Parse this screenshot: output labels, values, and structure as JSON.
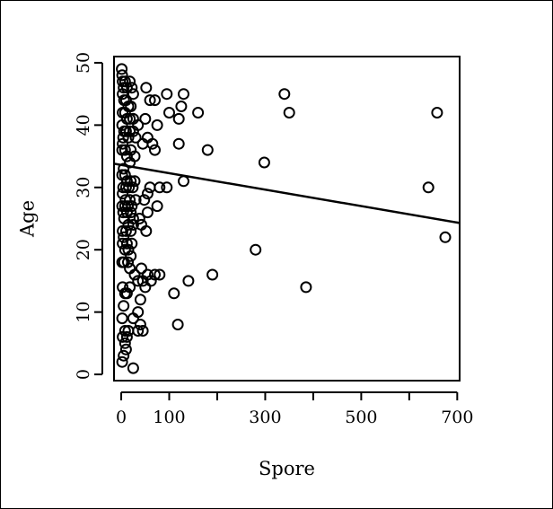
{
  "chart_data": {
    "type": "scatter",
    "title": "",
    "xlabel": "Spore",
    "ylabel": "Age",
    "xlim": [
      -15,
      705
    ],
    "ylim": [
      -1,
      51
    ],
    "x_ticks": [
      0,
      100,
      300,
      500,
      700
    ],
    "x_tick_labels": [
      "0",
      "100",
      "300",
      "500",
      "700"
    ],
    "x_minor_ticks": [
      200,
      400,
      600
    ],
    "y_ticks": [
      0,
      10,
      20,
      30,
      40,
      50
    ],
    "y_tick_labels": [
      "0",
      "10",
      "20",
      "30",
      "40",
      "50"
    ],
    "grid": false,
    "marker": "open-circle",
    "color": "#000000",
    "regression_line": {
      "x": [
        -15,
        705
      ],
      "y": [
        33.8,
        24.3
      ]
    },
    "points": [
      [
        1,
        49
      ],
      [
        2,
        48
      ],
      [
        3,
        47
      ],
      [
        5,
        46
      ],
      [
        8,
        47
      ],
      [
        12,
        46
      ],
      [
        18,
        47
      ],
      [
        22,
        46
      ],
      [
        25,
        45
      ],
      [
        3,
        45
      ],
      [
        6,
        44
      ],
      [
        10,
        44
      ],
      [
        15,
        43
      ],
      [
        20,
        43
      ],
      [
        3,
        42
      ],
      [
        8,
        42
      ],
      [
        12,
        41
      ],
      [
        18,
        41
      ],
      [
        25,
        41
      ],
      [
        35,
        40
      ],
      [
        2,
        40
      ],
      [
        6,
        39
      ],
      [
        10,
        39
      ],
      [
        18,
        39
      ],
      [
        25,
        39
      ],
      [
        4,
        38
      ],
      [
        15,
        38
      ],
      [
        30,
        38
      ],
      [
        3,
        37
      ],
      [
        8,
        36
      ],
      [
        20,
        36
      ],
      [
        45,
        37
      ],
      [
        2,
        36
      ],
      [
        12,
        35
      ],
      [
        28,
        35
      ],
      [
        18,
        34
      ],
      [
        5,
        33
      ],
      [
        2,
        32
      ],
      [
        8,
        32
      ],
      [
        12,
        31
      ],
      [
        20,
        31
      ],
      [
        28,
        31
      ],
      [
        4,
        30
      ],
      [
        10,
        30
      ],
      [
        16,
        30
      ],
      [
        24,
        30
      ],
      [
        3,
        29
      ],
      [
        9,
        28
      ],
      [
        18,
        28
      ],
      [
        30,
        28
      ],
      [
        2,
        27
      ],
      [
        8,
        27
      ],
      [
        14,
        27
      ],
      [
        22,
        27
      ],
      [
        4,
        26
      ],
      [
        12,
        26
      ],
      [
        20,
        26
      ],
      [
        25,
        25
      ],
      [
        6,
        25
      ],
      [
        15,
        24
      ],
      [
        25,
        24
      ],
      [
        3,
        23
      ],
      [
        10,
        23
      ],
      [
        20,
        23
      ],
      [
        5,
        22
      ],
      [
        12,
        21
      ],
      [
        22,
        21
      ],
      [
        3,
        21
      ],
      [
        8,
        20
      ],
      [
        15,
        20
      ],
      [
        20,
        19
      ],
      [
        2,
        18
      ],
      [
        6,
        18
      ],
      [
        14,
        18
      ],
      [
        18,
        17
      ],
      [
        28,
        16
      ],
      [
        35,
        15
      ],
      [
        45,
        15
      ],
      [
        3,
        14
      ],
      [
        8,
        13
      ],
      [
        12,
        13
      ],
      [
        18,
        14
      ],
      [
        40,
        12
      ],
      [
        5,
        11
      ],
      [
        35,
        10
      ],
      [
        2,
        9
      ],
      [
        25,
        9
      ],
      [
        40,
        8
      ],
      [
        8,
        7
      ],
      [
        35,
        7
      ],
      [
        45,
        7
      ],
      [
        15,
        7
      ],
      [
        3,
        6
      ],
      [
        12,
        6
      ],
      [
        8,
        5
      ],
      [
        10,
        4
      ],
      [
        5,
        3
      ],
      [
        2,
        2
      ],
      [
        25,
        1
      ],
      [
        42,
        17
      ],
      [
        55,
        16
      ],
      [
        62,
        15
      ],
      [
        70,
        16
      ],
      [
        80,
        16
      ],
      [
        50,
        14
      ],
      [
        52,
        23
      ],
      [
        55,
        26
      ],
      [
        60,
        30
      ],
      [
        75,
        27
      ],
      [
        80,
        30
      ],
      [
        95,
        30
      ],
      [
        48,
        28
      ],
      [
        55,
        29
      ],
      [
        38,
        25
      ],
      [
        42,
        24
      ],
      [
        52,
        46
      ],
      [
        70,
        44
      ],
      [
        95,
        45
      ],
      [
        130,
        45
      ],
      [
        60,
        44
      ],
      [
        100,
        42
      ],
      [
        120,
        41
      ],
      [
        125,
        43
      ],
      [
        160,
        42
      ],
      [
        50,
        41
      ],
      [
        55,
        38
      ],
      [
        65,
        37
      ],
      [
        70,
        36
      ],
      [
        75,
        40
      ],
      [
        120,
        37
      ],
      [
        180,
        36
      ],
      [
        130,
        31
      ],
      [
        110,
        13
      ],
      [
        118,
        8
      ],
      [
        140,
        15
      ],
      [
        190,
        16
      ],
      [
        280,
        20
      ],
      [
        298,
        34
      ],
      [
        340,
        45
      ],
      [
        350,
        42
      ],
      [
        385,
        14
      ],
      [
        640,
        30
      ],
      [
        658,
        42
      ],
      [
        675,
        22
      ]
    ]
  }
}
